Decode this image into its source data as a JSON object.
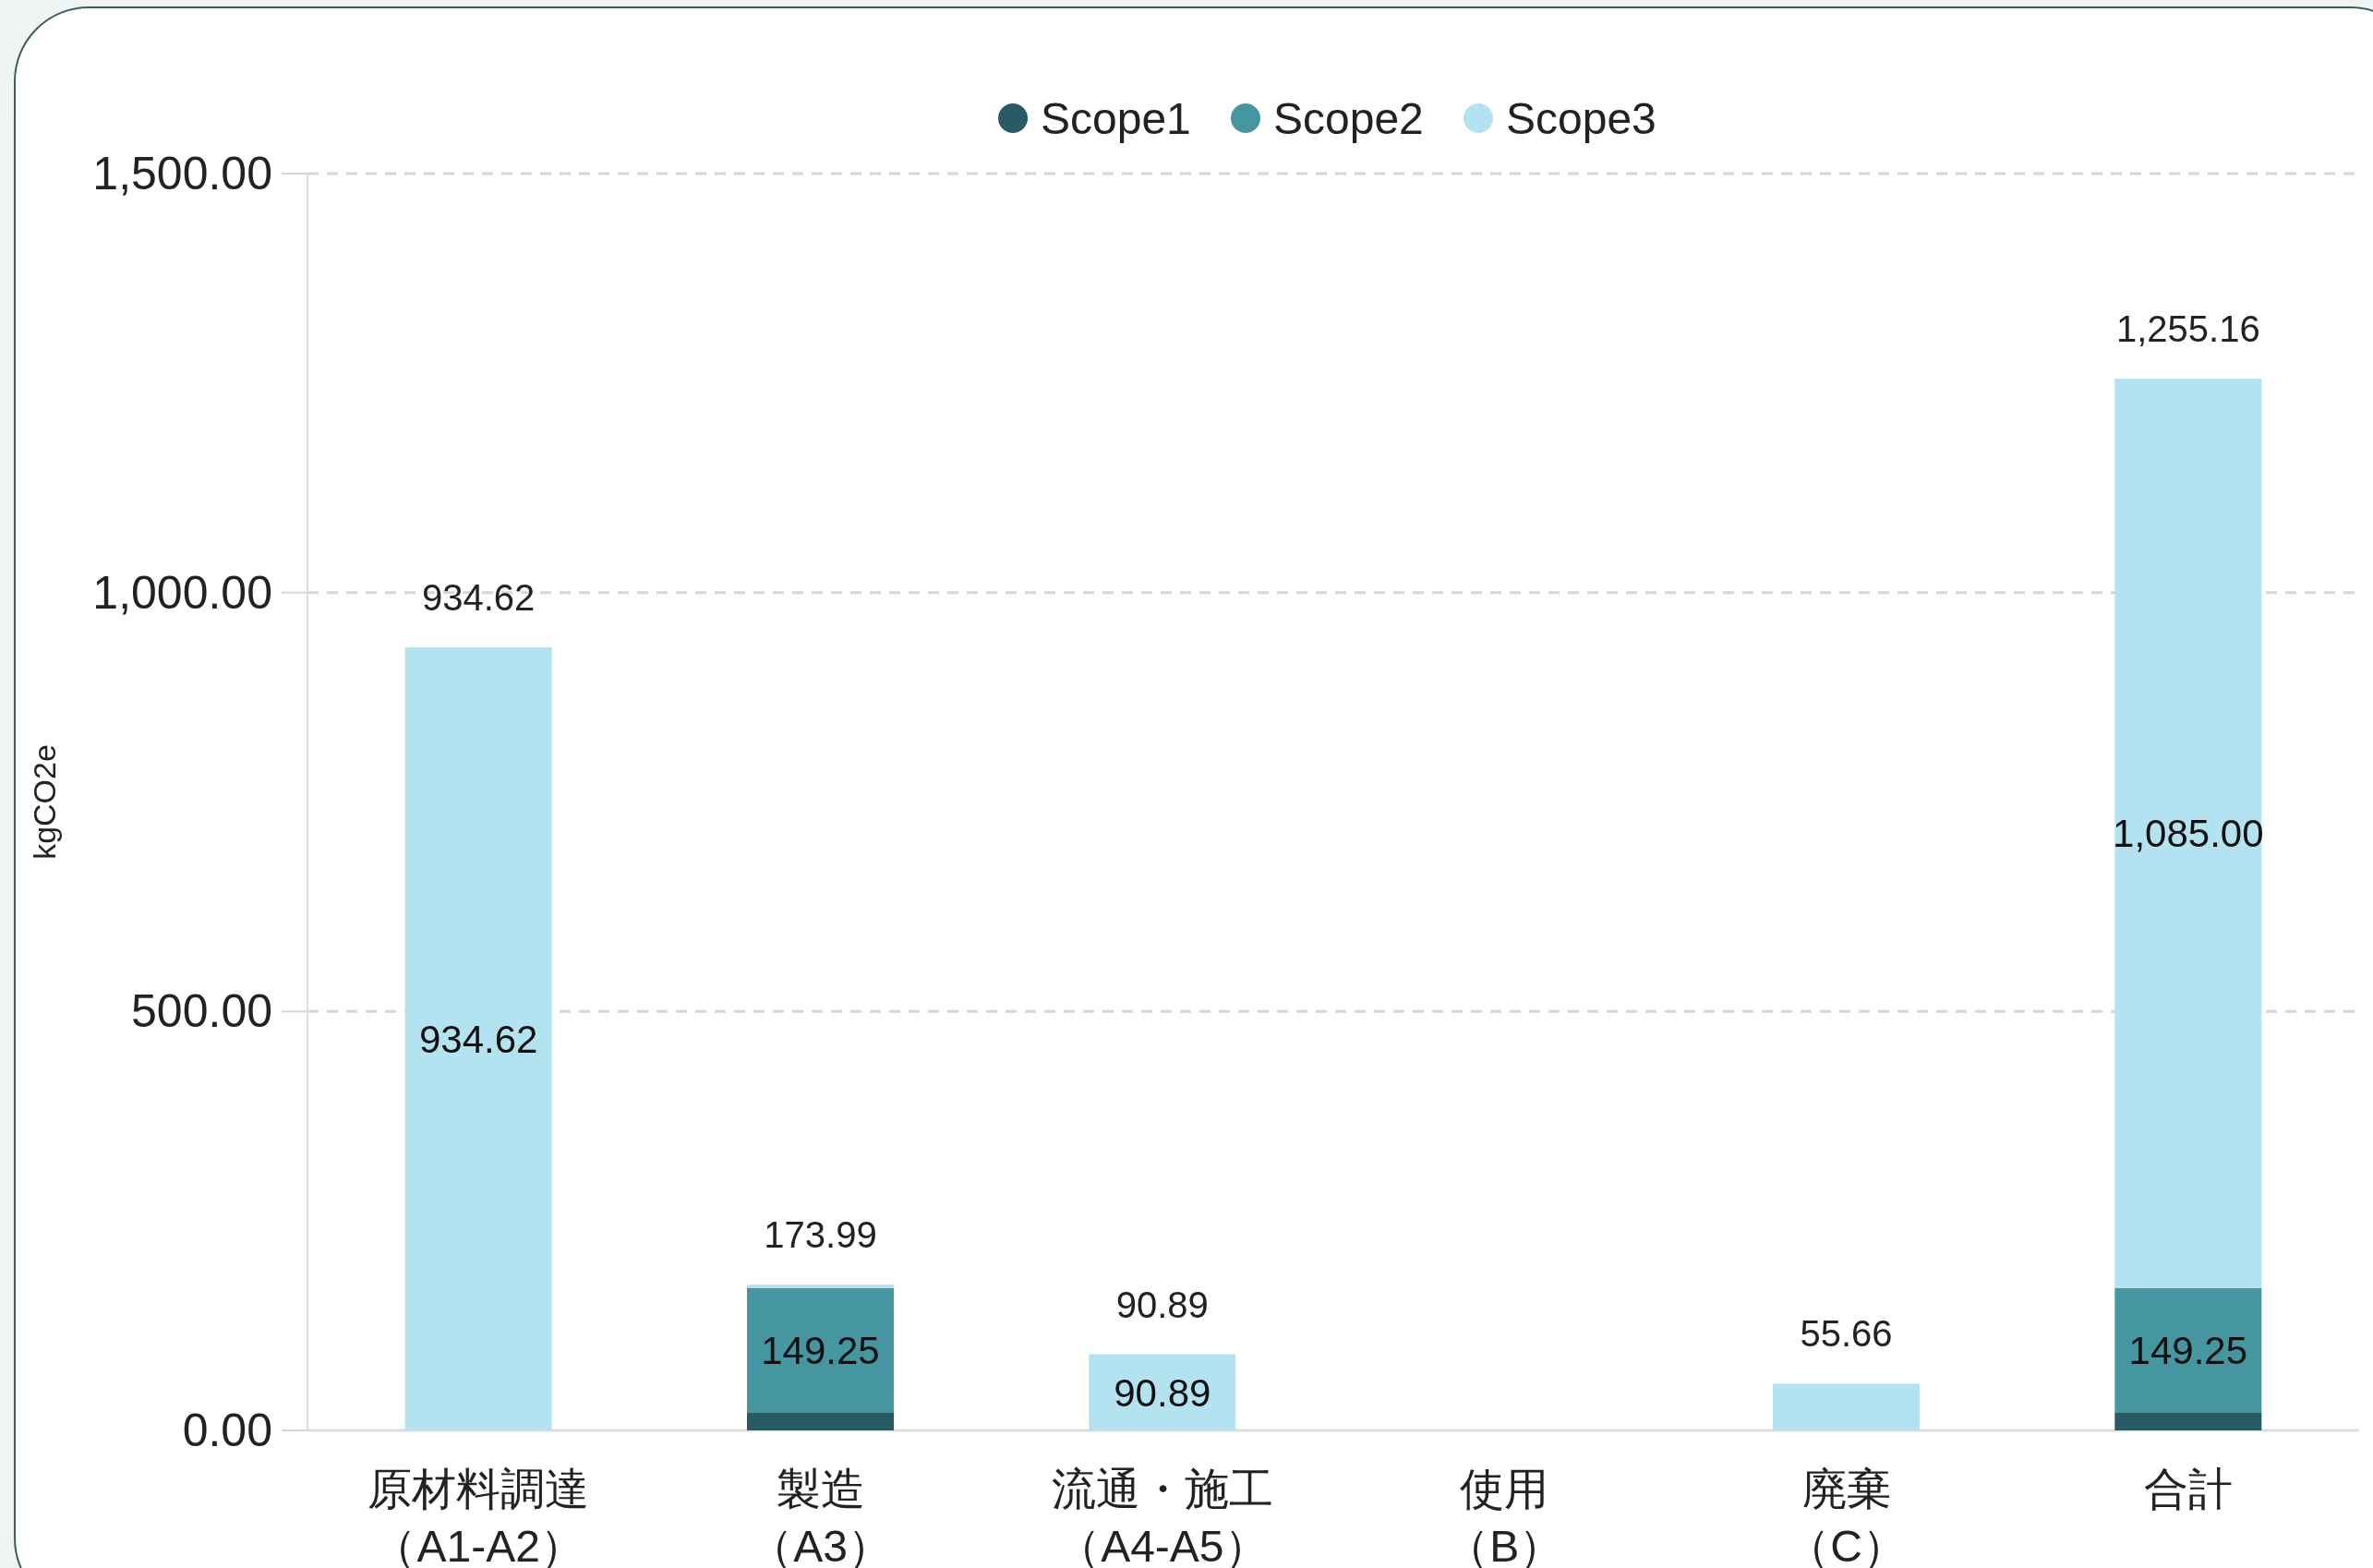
{
  "chart_data": {
    "type": "bar",
    "stacked": true,
    "ylabel": "kgCO2e",
    "categories": [
      "原材料調達（A1-A2）",
      "製造（A3）",
      "流通・施工（A4-A5）",
      "使用（B）",
      "廃棄（C）",
      "合計"
    ],
    "series": [
      {
        "name": "Scope1",
        "color": "#275a63",
        "values": [
          null,
          20.91,
          null,
          null,
          null,
          20.91
        ]
      },
      {
        "name": "Scope2",
        "color": "#4696a2",
        "values": [
          null,
          149.25,
          null,
          null,
          null,
          149.25
        ],
        "value_labels": [
          null,
          "149.25",
          null,
          null,
          null,
          "149.25"
        ]
      },
      {
        "name": "Scope3",
        "color": "#b3e3f0",
        "values": [
          934.62,
          3.83,
          90.89,
          null,
          55.66,
          1085.0
        ],
        "value_labels": [
          "934.62",
          null,
          "90.89",
          null,
          null,
          "1,085.00"
        ]
      }
    ],
    "totals": [
      "934.62",
      "173.99",
      "90.89",
      null,
      "55.66",
      "1,255.16"
    ],
    "ylim": [
      0,
      1500
    ],
    "yticks": [
      {
        "value": 0,
        "label": "0.00"
      },
      {
        "value": 500,
        "label": "500.00"
      },
      {
        "value": 1000,
        "label": "1,000.00"
      },
      {
        "value": 1500,
        "label": "1,500.00"
      }
    ],
    "grid": "y",
    "legend": "top",
    "marker": "circle"
  }
}
